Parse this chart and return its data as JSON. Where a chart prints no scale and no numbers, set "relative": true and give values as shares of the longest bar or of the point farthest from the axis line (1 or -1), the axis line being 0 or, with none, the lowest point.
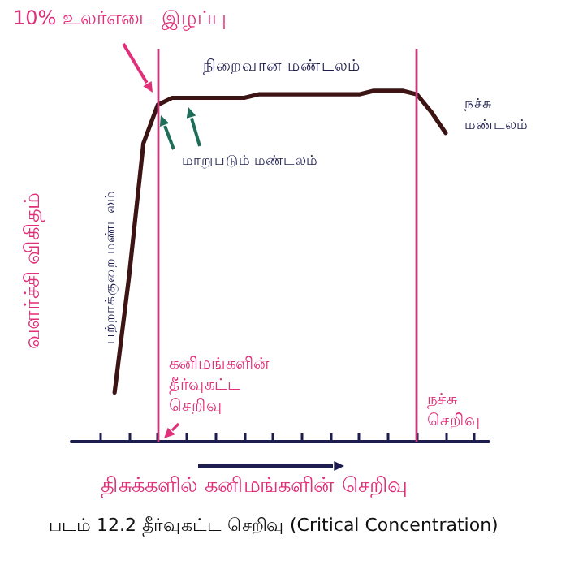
{
  "chart_data": {
    "type": "line",
    "relative": true,
    "xlabel": "திசுக்களில் கனிமங்களின் செறிவு",
    "ylabel": "வளர்ச்சி விகிதம்",
    "categories": [
      null,
      null,
      null,
      null,
      null,
      null,
      null,
      null,
      null,
      null,
      null,
      null,
      null,
      null,
      null,
      null,
      null,
      null,
      null,
      null,
      null,
      null,
      null,
      null,
      null,
      null,
      null,
      null,
      null,
      null
    ],
    "series": [
      {
        "color": "#3d1414",
        "values": [
          null,
          null,
          null,
          0.14,
          0.47,
          0.85,
          0.96,
          0.98,
          0.98,
          0.98,
          0.98,
          0.98,
          0.98,
          0.99,
          0.99,
          0.99,
          0.99,
          0.99,
          0.99,
          0.99,
          0.99,
          1,
          1,
          1,
          0.99,
          0.94,
          0.88,
          null,
          null,
          null
        ]
      }
    ],
    "marker": "none",
    "line_style": "solid",
    "ref_lines": [
      {
        "axis": "x",
        "label": "கனிமங்களின் தீர்வுகட்ட செறிவு",
        "color": "#c8387a"
      },
      {
        "axis": "x",
        "label": "நச்சு செறிவு",
        "color": "#c8387a"
      }
    ],
    "annotations": [
      "10% உலர்எடை இழப்பு",
      "நிறைவான மண்டலம்",
      "நச்சு மண்டலம்",
      "மாறுபடும் மண்டலம்",
      "பற்றாக்குறை மண்டலம்",
      "படம் 12.2 தீர்வுகட்ட செறிவு (Critical Concentration)"
    ]
  }
}
